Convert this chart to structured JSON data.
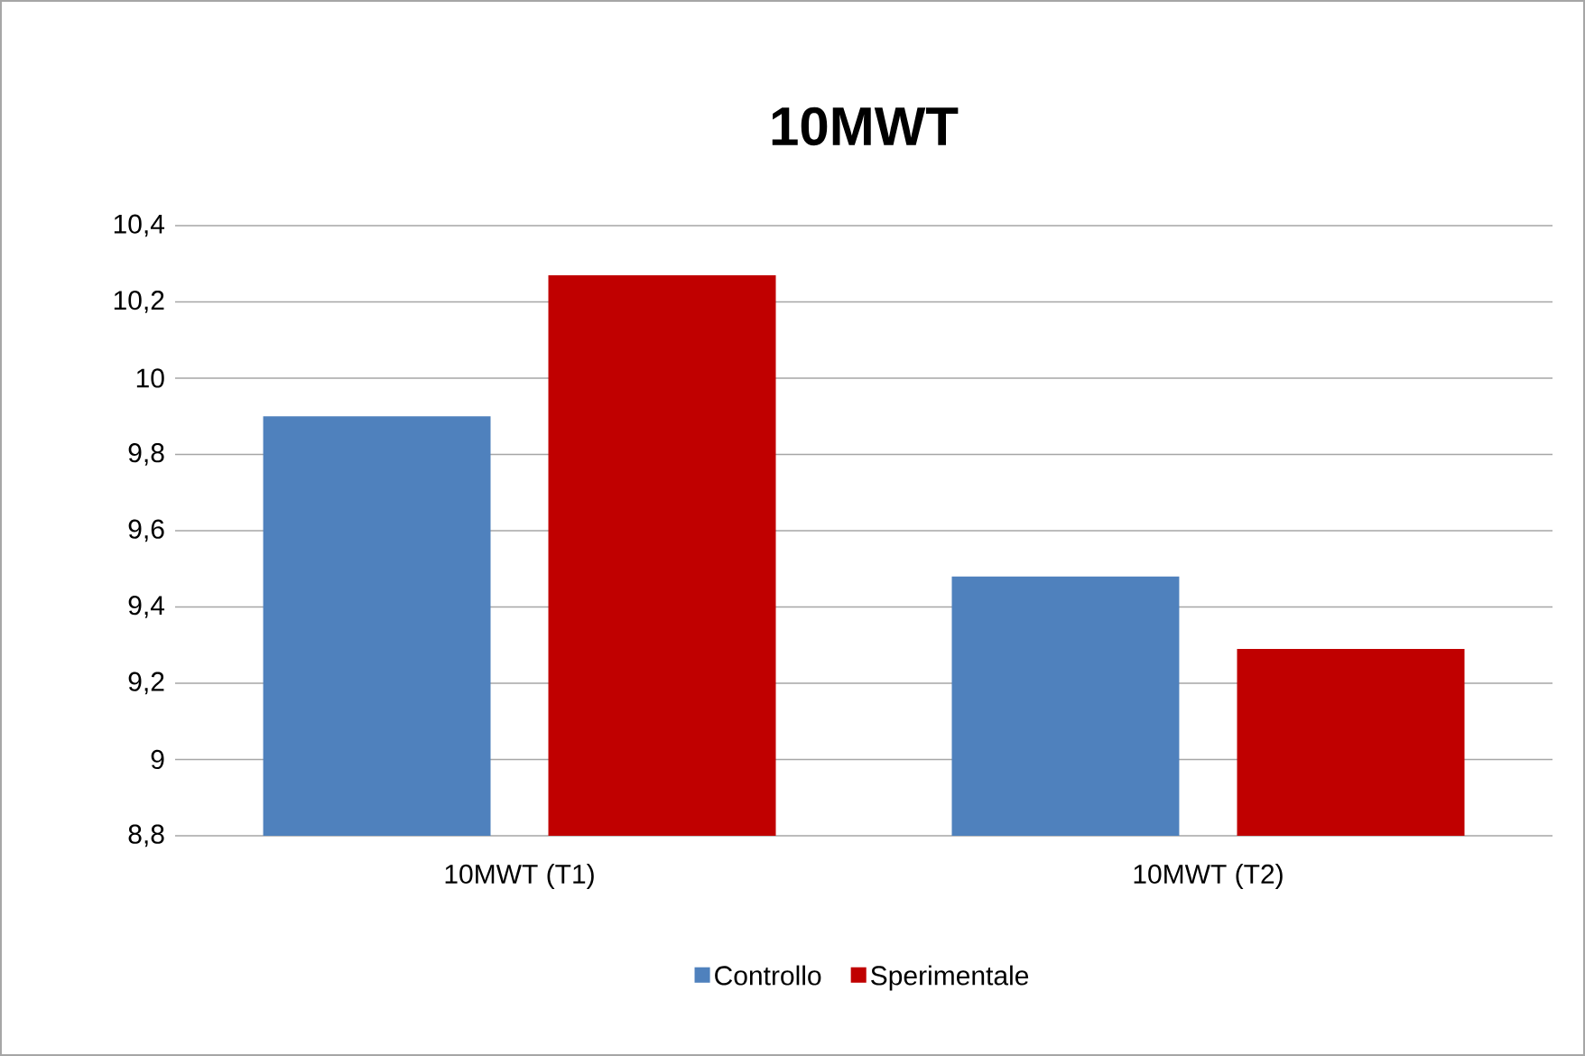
{
  "chart_data": {
    "type": "bar",
    "title": "10MWT",
    "categories": [
      "10MWT (T1)",
      "10MWT (T2)"
    ],
    "series": [
      {
        "name": "Controllo",
        "color": "#4f81bd",
        "values": [
          9.9,
          9.48
        ]
      },
      {
        "name": "Sperimentale",
        "color": "#c00000",
        "values": [
          10.27,
          9.29
        ]
      }
    ],
    "ylim": [
      8.8,
      10.4
    ],
    "yticks": [
      {
        "value": 8.8,
        "label": "8,8"
      },
      {
        "value": 9,
        "label": "9"
      },
      {
        "value": 9.2,
        "label": "9,2"
      },
      {
        "value": 9.4,
        "label": "9,4"
      },
      {
        "value": 9.6,
        "label": "9,6"
      },
      {
        "value": 9.8,
        "label": "9,8"
      },
      {
        "value": 10,
        "label": "10"
      },
      {
        "value": 10.2,
        "label": "10,2"
      },
      {
        "value": 10.4,
        "label": "10,4"
      }
    ],
    "grid": "y",
    "legend": "bottom"
  }
}
